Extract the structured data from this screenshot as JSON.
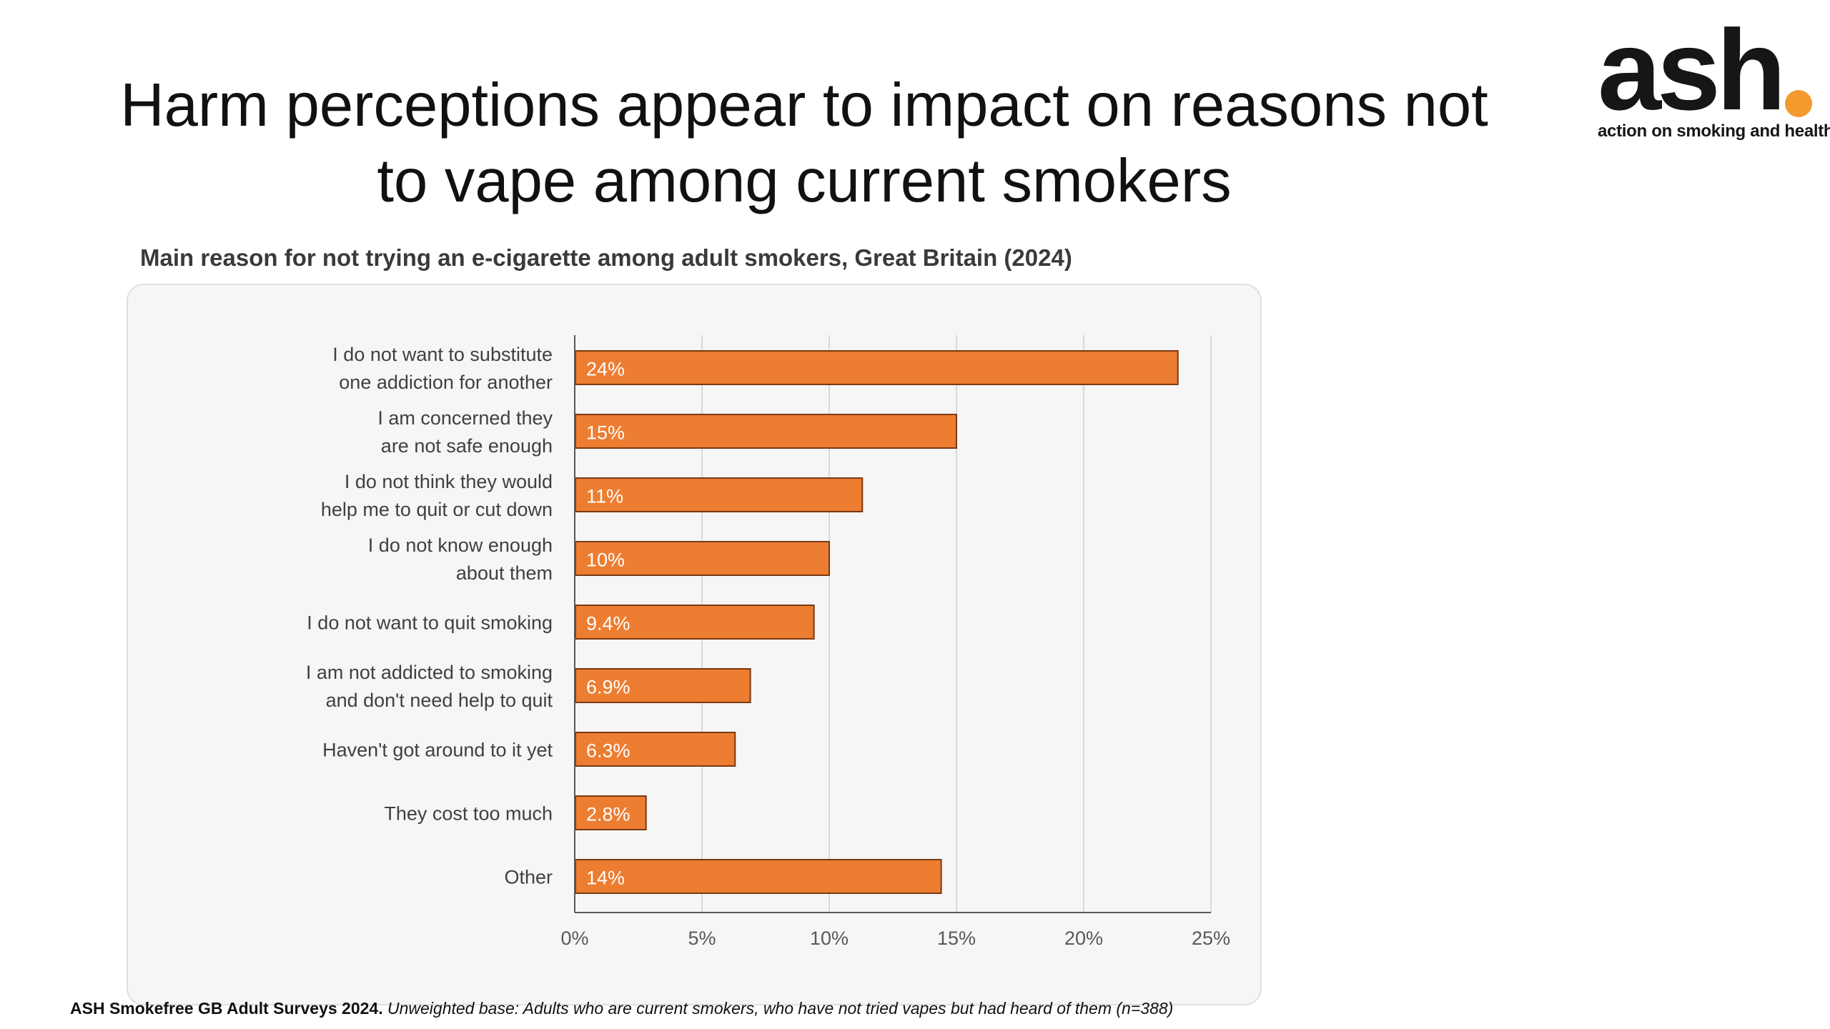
{
  "title": {
    "line1": "Harm perceptions appear to impact on reasons not",
    "line2": "to vape among current smokers"
  },
  "logo": {
    "mark": "ash",
    "tagline": "action on smoking and health",
    "dot_color": "#F29A2E"
  },
  "footnote": {
    "source": "ASH Smokefree GB Adult Surveys 2024.",
    "base": "Unweighted base: Adults who are current smokers, who have not tried vapes but had heard of them (n=388)"
  },
  "chart_data": {
    "type": "bar",
    "orientation": "horizontal",
    "title": "Main reason for not trying an e-cigarette among adult smokers, Great Britain (2024)",
    "categories": [
      [
        "I do not want to substitute",
        "one addiction for another"
      ],
      [
        "I am concerned they",
        "are not safe enough"
      ],
      [
        "I do not think they would",
        "help me to quit or cut down"
      ],
      [
        "I do not know enough",
        "about them"
      ],
      [
        "I do not want to quit smoking"
      ],
      [
        "I am not addicted to smoking",
        "and don't need help to quit"
      ],
      [
        "Haven't got around to it yet"
      ],
      [
        "They cost too much"
      ],
      [
        "Other"
      ]
    ],
    "values": [
      23.7,
      15.0,
      11.3,
      10.0,
      9.4,
      6.9,
      6.3,
      2.8,
      14.4
    ],
    "data_labels": [
      "24%",
      "15%",
      "11%",
      "10%",
      "9.4%",
      "6.9%",
      "6.3%",
      "2.8%",
      "14%"
    ],
    "xlim": [
      0,
      25
    ],
    "x_ticks": [
      0,
      5,
      10,
      15,
      20,
      25
    ],
    "x_tick_labels": [
      "0%",
      "5%",
      "10%",
      "15%",
      "20%",
      "25%"
    ],
    "grid": true,
    "bar_color": "#ED7D31",
    "bar_edge_color": "#7A3A14"
  }
}
